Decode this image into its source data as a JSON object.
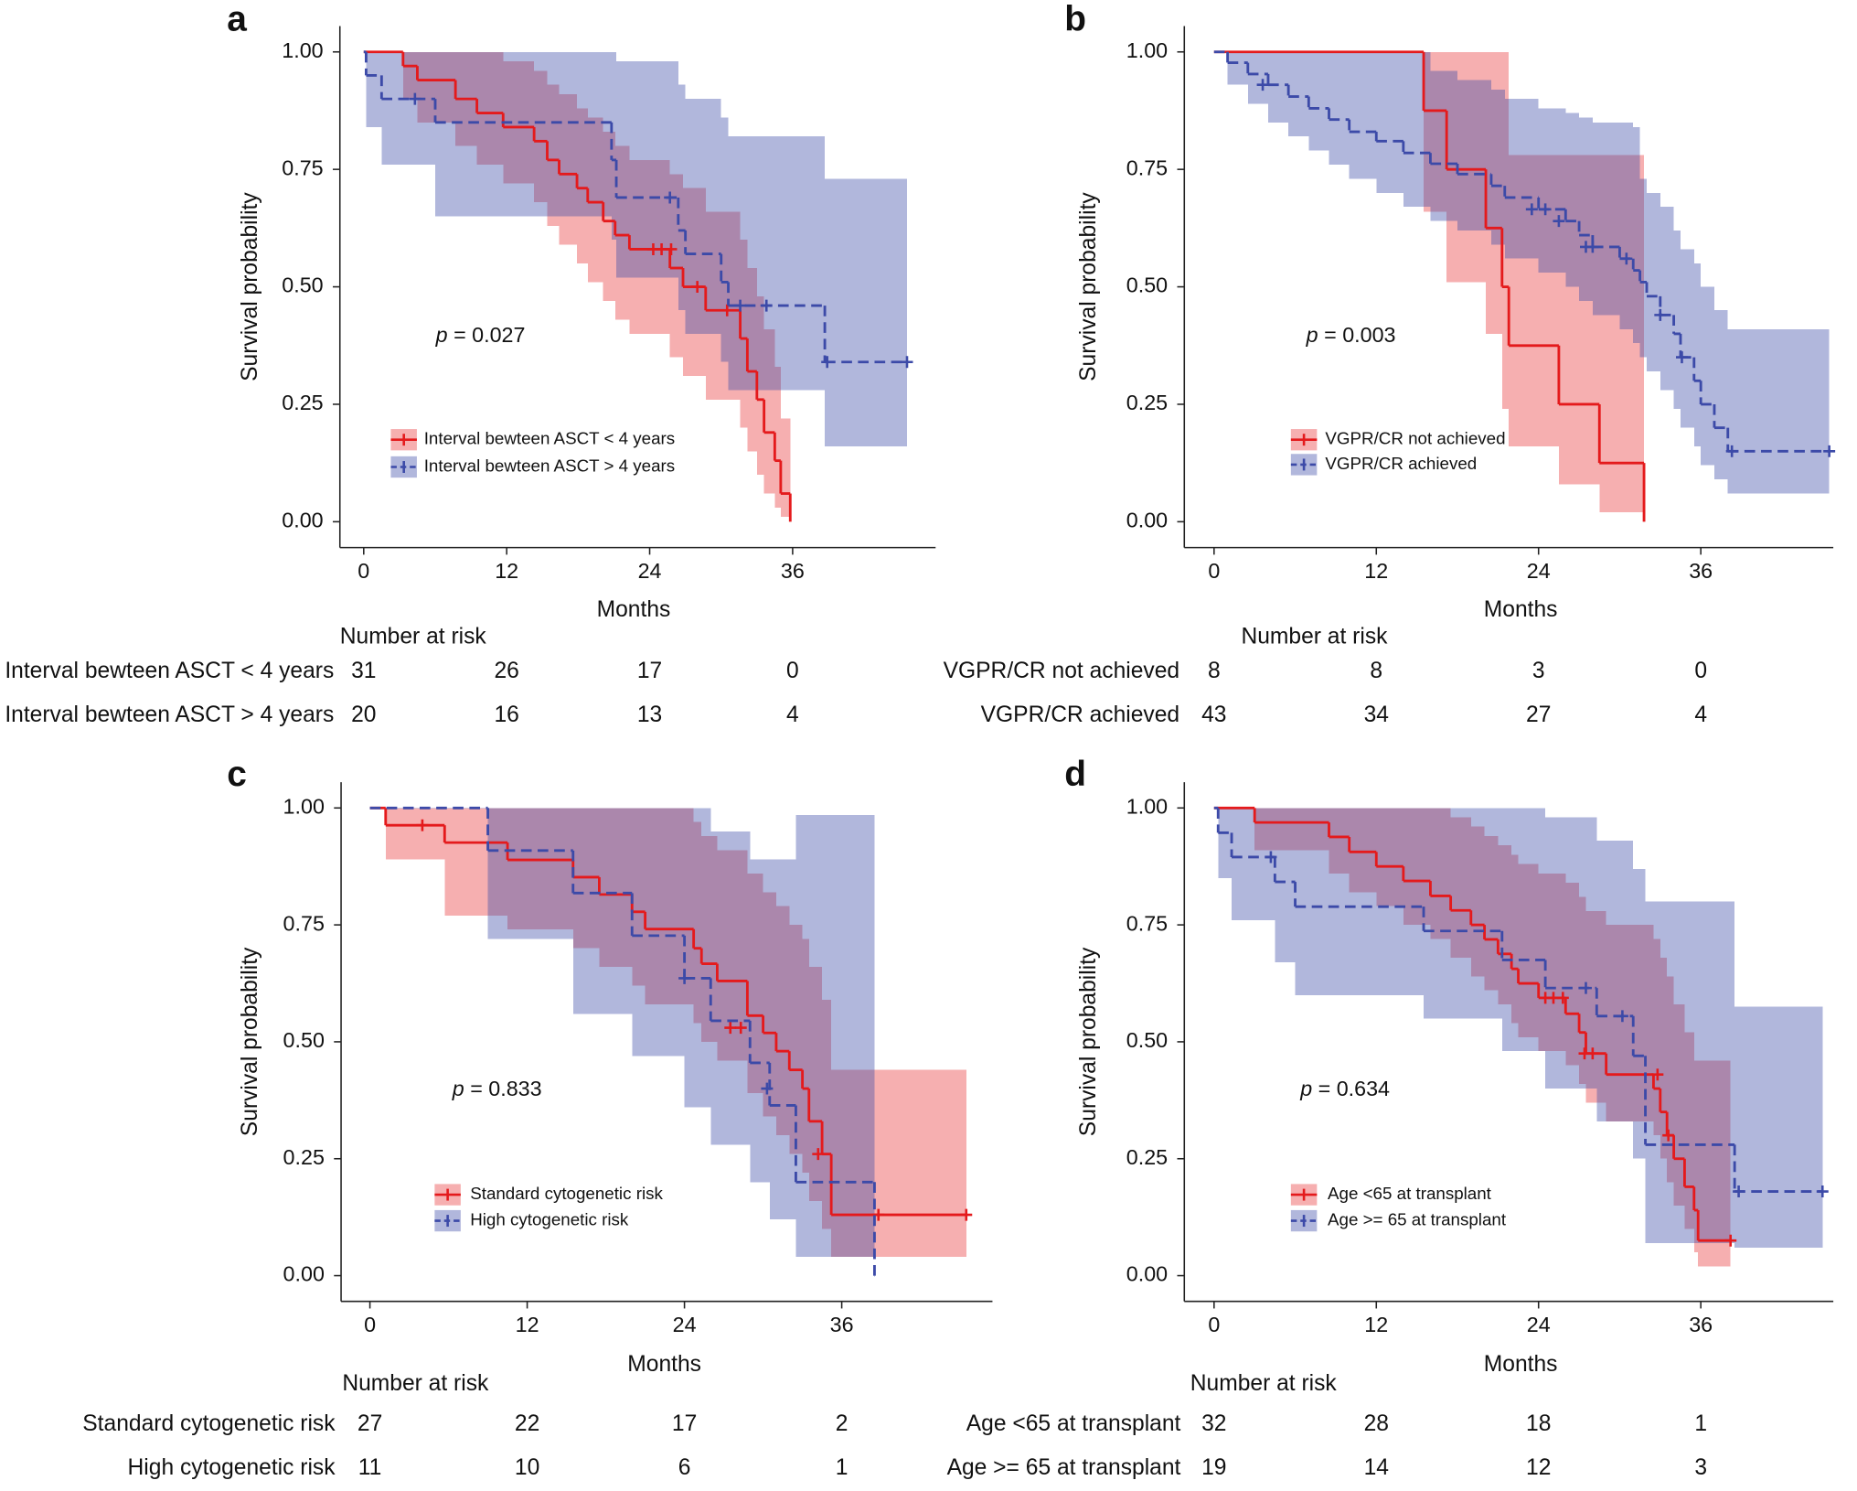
{
  "chart_data": [
    {
      "type": "km",
      "panel_label": "a",
      "xlabel": "Months",
      "ylabel": "Survival probability",
      "annotation": "p = 0.027",
      "xlim": [
        -2,
        48
      ],
      "ylim": [
        -0.055,
        1.055
      ],
      "xticks": [
        0,
        12,
        24,
        36
      ],
      "yticks": [
        {
          "value": 0,
          "label": "0.00"
        },
        {
          "value": 0.25,
          "label": "0.25"
        },
        {
          "value": 0.5,
          "label": "0.50"
        },
        {
          "value": 0.75,
          "label": "0.75"
        },
        {
          "value": 1,
          "label": "1.00"
        }
      ],
      "series": [
        {
          "name": "Interval bewteen ASCT < 4 years",
          "color": "#e41a1c",
          "dashed": false,
          "x": [
            0,
            3.3,
            4.5,
            7.7,
            9.5,
            11.7,
            14.3,
            15.4,
            16.4,
            17.9,
            18.8,
            20.1,
            21.1,
            22.3,
            25.7,
            26.8,
            28.7,
            31.6,
            32.2,
            33.0,
            33.6,
            34.5,
            35.0,
            35.8
          ],
          "values": [
            1,
            0.97,
            0.94,
            0.9,
            0.87,
            0.84,
            0.81,
            0.77,
            0.74,
            0.71,
            0.68,
            0.64,
            0.61,
            0.58,
            0.54,
            0.5,
            0.45,
            0.39,
            0.32,
            0.26,
            0.19,
            0.13,
            0.06,
            0
          ],
          "lower": [
            1,
            0.9,
            0.85,
            0.8,
            0.76,
            0.72,
            0.68,
            0.63,
            0.59,
            0.55,
            0.51,
            0.47,
            0.43,
            0.4,
            0.35,
            0.31,
            0.26,
            0.2,
            0.15,
            0.1,
            0.06,
            0.03,
            0.01,
            0
          ],
          "upper": [
            1,
            1,
            1,
            1,
            1,
            0.98,
            0.96,
            0.93,
            0.91,
            0.88,
            0.86,
            0.83,
            0.8,
            0.77,
            0.74,
            0.71,
            0.66,
            0.6,
            0.54,
            0.48,
            0.41,
            0.33,
            0.22,
            0
          ],
          "censor_x": [
            24.3,
            25.0,
            25.8,
            28.0,
            30.5
          ],
          "censor_y": [
            0.58,
            0.58,
            0.58,
            0.5,
            0.45
          ]
        },
        {
          "name": "Interval bewteen ASCT > 4 years",
          "color": "#3c4aa8",
          "dashed": true,
          "x": [
            0,
            0.2,
            1.5,
            6.0,
            20.8,
            21.2,
            26.4,
            27.0,
            30.0,
            30.6,
            38.7
          ],
          "values": [
            1,
            0.95,
            0.9,
            0.85,
            0.77,
            0.69,
            0.62,
            0.57,
            0.51,
            0.46,
            0.34
          ],
          "lower": [
            1,
            0.84,
            0.76,
            0.65,
            0.6,
            0.52,
            0.45,
            0.4,
            0.34,
            0.28,
            0.16
          ],
          "upper": [
            1,
            1,
            1,
            1,
            1,
            0.98,
            0.93,
            0.9,
            0.86,
            0.82,
            0.73
          ],
          "censor_x": [
            4.3,
            25.7,
            31.6,
            33.8,
            38.9,
            45.6
          ],
          "censor_y": [
            0.9,
            0.69,
            0.46,
            0.46,
            0.34,
            0.34
          ]
        }
      ],
      "risk_table": {
        "title": "Number at risk",
        "rows": [
          {
            "name": "Interval bewteen ASCT < 4 years",
            "values": [
              31,
              26,
              17,
              0
            ]
          },
          {
            "name": "Interval bewteen ASCT > 4 years",
            "values": [
              20,
              16,
              13,
              4
            ]
          }
        ]
      }
    },
    {
      "type": "km",
      "panel_label": "b",
      "xlabel": "Months",
      "ylabel": "Survival probability",
      "annotation": "p = 0.003",
      "xlim": [
        -2.2,
        45.8
      ],
      "ylim": [
        -0.055,
        1.055
      ],
      "xticks": [
        0,
        12,
        24,
        36
      ],
      "yticks": [
        {
          "value": 0,
          "label": "0.00"
        },
        {
          "value": 0.25,
          "label": "0.25"
        },
        {
          "value": 0.5,
          "label": "0.50"
        },
        {
          "value": 0.75,
          "label": "0.75"
        },
        {
          "value": 1,
          "label": "1.00"
        }
      ],
      "series": [
        {
          "name": "VGPR/CR not achieved",
          "color": "#e41a1c",
          "dashed": false,
          "x": [
            0,
            15.5,
            17.2,
            20.1,
            21.3,
            21.8,
            25.5,
            28.5,
            31.8
          ],
          "values": [
            1,
            0.875,
            0.75,
            0.625,
            0.5,
            0.375,
            0.25,
            0.125,
            0
          ],
          "lower": [
            1,
            0.66,
            0.51,
            0.4,
            0.24,
            0.16,
            0.08,
            0.02,
            0
          ],
          "upper": [
            1,
            1,
            1,
            1,
            1,
            0.78,
            0.78,
            0.78,
            0
          ],
          "censor_x": [],
          "censor_y": []
        },
        {
          "name": "VGPR/CR achieved",
          "color": "#3c4aa8",
          "dashed": true,
          "x": [
            0,
            1,
            2.5,
            4,
            5.5,
            7,
            8.5,
            10,
            12,
            14,
            16,
            18,
            20.5,
            21.5,
            24,
            26,
            27,
            28,
            30,
            31,
            31.5,
            32,
            33,
            34,
            34.5,
            35.5,
            36,
            37,
            38
          ],
          "values": [
            1,
            0.977,
            0.953,
            0.93,
            0.905,
            0.88,
            0.856,
            0.83,
            0.81,
            0.785,
            0.762,
            0.74,
            0.715,
            0.69,
            0.665,
            0.64,
            0.61,
            0.585,
            0.56,
            0.535,
            0.51,
            0.48,
            0.44,
            0.4,
            0.35,
            0.3,
            0.25,
            0.2,
            0.15
          ],
          "lower": [
            1,
            0.93,
            0.89,
            0.85,
            0.82,
            0.79,
            0.76,
            0.73,
            0.7,
            0.67,
            0.64,
            0.62,
            0.59,
            0.56,
            0.53,
            0.5,
            0.47,
            0.44,
            0.41,
            0.38,
            0.35,
            0.32,
            0.28,
            0.24,
            0.2,
            0.16,
            0.12,
            0.09,
            0.06
          ],
          "upper": [
            1,
            1,
            1,
            1,
            1,
            1,
            1,
            1,
            1,
            1,
            0.96,
            0.94,
            0.92,
            0.9,
            0.88,
            0.87,
            0.86,
            0.85,
            0.85,
            0.84,
            0.73,
            0.7,
            0.67,
            0.62,
            0.58,
            0.55,
            0.5,
            0.45,
            0.41
          ],
          "censor_x": [
            3.6,
            23.5,
            24.5,
            25.5,
            27.5,
            28.0,
            30.5,
            33.0,
            34.6,
            38.3,
            45.5
          ],
          "censor_y": [
            0.93,
            0.665,
            0.665,
            0.64,
            0.585,
            0.585,
            0.56,
            0.44,
            0.35,
            0.15,
            0.15
          ]
        }
      ],
      "risk_table": {
        "title": "Number at risk",
        "rows": [
          {
            "name": "VGPR/CR not achieved",
            "values": [
              8,
              8,
              3,
              0
            ]
          },
          {
            "name": "VGPR/CR achieved",
            "values": [
              43,
              34,
              27,
              4
            ]
          }
        ]
      }
    },
    {
      "type": "km",
      "panel_label": "c",
      "xlabel": "Months",
      "ylabel": "Survival probability",
      "annotation": "p = 0.833",
      "xlim": [
        -2.2,
        47.5
      ],
      "ylim": [
        -0.055,
        1.055
      ],
      "xticks": [
        0,
        12,
        24,
        36
      ],
      "yticks": [
        {
          "value": 0,
          "label": "0.00"
        },
        {
          "value": 0.25,
          "label": "0.25"
        },
        {
          "value": 0.5,
          "label": "0.50"
        },
        {
          "value": 0.75,
          "label": "0.75"
        },
        {
          "value": 1,
          "label": "1.00"
        }
      ],
      "series": [
        {
          "name": "Standard cytogenetic risk",
          "color": "#e41a1c",
          "dashed": false,
          "x": [
            0,
            1.2,
            5.7,
            10.5,
            15.5,
            17.5,
            20.0,
            21.0,
            24.7,
            25.3,
            26.5,
            28.8,
            30.0,
            31.0,
            32.0,
            33.0,
            33.5,
            34.5,
            35.2
          ],
          "values": [
            1,
            0.963,
            0.926,
            0.889,
            0.852,
            0.815,
            0.778,
            0.741,
            0.7,
            0.667,
            0.63,
            0.556,
            0.519,
            0.48,
            0.44,
            0.4,
            0.33,
            0.26,
            0.13
          ],
          "lower": [
            1,
            0.89,
            0.77,
            0.74,
            0.7,
            0.66,
            0.62,
            0.58,
            0.54,
            0.5,
            0.46,
            0.39,
            0.34,
            0.3,
            0.26,
            0.22,
            0.16,
            0.1,
            0.04
          ],
          "upper": [
            1,
            1,
            1,
            1,
            1,
            1,
            1,
            1,
            0.97,
            0.94,
            0.91,
            0.86,
            0.82,
            0.79,
            0.75,
            0.72,
            0.66,
            0.59,
            0.44
          ],
          "censor_x": [
            4.0,
            27.5,
            28.3,
            34.2,
            38.8,
            45.5
          ],
          "censor_y": [
            0.963,
            0.53,
            0.53,
            0.26,
            0.13,
            0.13
          ]
        },
        {
          "name": "High cytogenetic risk",
          "color": "#3c4aa8",
          "dashed": true,
          "x": [
            0,
            9.0,
            15.5,
            20.0,
            24.0,
            26.0,
            29.0,
            30.5,
            32.5,
            38.5
          ],
          "values": [
            1,
            0.909,
            0.818,
            0.727,
            0.636,
            0.545,
            0.455,
            0.364,
            0.2,
            0
          ],
          "lower": [
            1,
            0.72,
            0.56,
            0.47,
            0.36,
            0.28,
            0.2,
            0.12,
            0.04,
            0
          ],
          "upper": [
            1,
            1,
            1,
            1,
            1,
            0.95,
            0.89,
            0.89,
            0.985,
            0
          ],
          "censor_x": [
            24.0,
            30.3
          ],
          "censor_y": [
            0.636,
            0.4
          ]
        }
      ],
      "risk_table": {
        "title": "Number at risk",
        "rows": [
          {
            "name": "Standard cytogenetic risk",
            "values": [
              27,
              22,
              17,
              2
            ]
          },
          {
            "name": "High cytogenetic risk",
            "values": [
              11,
              10,
              6,
              1
            ]
          }
        ]
      }
    },
    {
      "type": "km",
      "panel_label": "d",
      "xlabel": "Months",
      "ylabel": "Survival probability",
      "annotation": "p = 0.634",
      "xlim": [
        -2.2,
        45.8
      ],
      "ylim": [
        -0.055,
        1.055
      ],
      "xticks": [
        0,
        12,
        24,
        36
      ],
      "yticks": [
        {
          "value": 0,
          "label": "0.00"
        },
        {
          "value": 0.25,
          "label": "0.25"
        },
        {
          "value": 0.5,
          "label": "0.50"
        },
        {
          "value": 0.75,
          "label": "0.75"
        },
        {
          "value": 1,
          "label": "1.00"
        }
      ],
      "series": [
        {
          "name": "Age <65 at transplant",
          "color": "#e41a1c",
          "dashed": false,
          "x": [
            0,
            3,
            8.5,
            10,
            12,
            14,
            16,
            17.5,
            19,
            20,
            21,
            22,
            22.5,
            24,
            26,
            27,
            27.5,
            29,
            32.5,
            33,
            33.5,
            34,
            34.8,
            35.5,
            35.8
          ],
          "values": [
            1,
            0.969,
            0.938,
            0.906,
            0.875,
            0.844,
            0.812,
            0.781,
            0.75,
            0.719,
            0.688,
            0.656,
            0.625,
            0.594,
            0.56,
            0.52,
            0.475,
            0.43,
            0.4,
            0.35,
            0.3,
            0.25,
            0.19,
            0.14,
            0.075
          ],
          "lower": [
            1,
            0.91,
            0.86,
            0.82,
            0.79,
            0.75,
            0.72,
            0.68,
            0.64,
            0.61,
            0.58,
            0.54,
            0.51,
            0.48,
            0.45,
            0.41,
            0.37,
            0.33,
            0.3,
            0.25,
            0.2,
            0.15,
            0.1,
            0.05,
            0.02
          ],
          "upper": [
            1,
            1,
            1,
            1,
            1,
            1,
            1,
            0.98,
            0.96,
            0.94,
            0.92,
            0.9,
            0.88,
            0.86,
            0.84,
            0.81,
            0.78,
            0.75,
            0.72,
            0.68,
            0.64,
            0.58,
            0.52,
            0.46,
            0.46
          ],
          "censor_x": [
            24.5,
            25.1,
            25.8,
            27.4,
            28.0,
            32.8,
            33.6,
            38.2
          ],
          "censor_y": [
            0.594,
            0.594,
            0.594,
            0.475,
            0.475,
            0.43,
            0.3,
            0.075
          ]
        },
        {
          "name": "Age >= 65 at transplant",
          "color": "#3c4aa8",
          "dashed": true,
          "x": [
            0,
            0.3,
            1.3,
            4.5,
            6.0,
            15.5,
            21.3,
            24.5,
            28.3,
            31.0,
            31.9,
            38.5
          ],
          "values": [
            1,
            0.947,
            0.895,
            0.842,
            0.789,
            0.737,
            0.675,
            0.615,
            0.555,
            0.47,
            0.28,
            0.18
          ],
          "lower": [
            1,
            0.85,
            0.76,
            0.67,
            0.6,
            0.55,
            0.48,
            0.4,
            0.33,
            0.25,
            0.07,
            0.06
          ],
          "upper": [
            1,
            1,
            1,
            1,
            1,
            1,
            1,
            0.98,
            0.93,
            0.87,
            0.8,
            0.575
          ],
          "censor_x": [
            4.2,
            27.5,
            30.2,
            38.8,
            45.0
          ],
          "censor_y": [
            0.895,
            0.615,
            0.555,
            0.18,
            0.18
          ]
        }
      ],
      "risk_table": {
        "title": "Number at risk",
        "rows": [
          {
            "name": "Age <65 at transplant",
            "values": [
              32,
              28,
              18,
              1
            ]
          },
          {
            "name": "Age >= 65 at transplant",
            "values": [
              19,
              14,
              12,
              3
            ]
          }
        ]
      }
    }
  ]
}
